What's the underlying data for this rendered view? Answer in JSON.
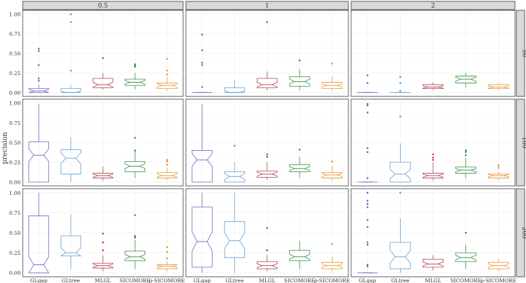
{
  "chart_data": {
    "type": "boxplot",
    "ylabel": "precision",
    "col_facets": [
      "0.5",
      "1",
      "2"
    ],
    "row_facets": [
      "50",
      "100",
      "200"
    ],
    "categories": [
      "GLgap",
      "GLtree",
      "MLGL",
      "SICOMORE",
      "ρ-SICOMORE"
    ],
    "colors": [
      "#6e5fc4",
      "#5b9bd5",
      "#b03a48",
      "#2e8b3a",
      "#e8912d"
    ],
    "ylim": [
      0,
      1
    ],
    "y_ticks": [
      0.0,
      0.25,
      0.5,
      0.75,
      1.0
    ],
    "y_tick_labels": [
      "0.00",
      "0.25",
      "0.50",
      "0.75",
      "1.00"
    ],
    "notched": true,
    "grid": true,
    "panels": [
      {
        "row": "50",
        "col": "0.5",
        "boxes": [
          {
            "q1": 0.0,
            "med": 0.02,
            "q3": 0.05,
            "lw": 0.0,
            "uw": 0.1,
            "notch": 0.02,
            "out": [
              0.15,
              0.18,
              0.35,
              0.53,
              0.56
            ]
          },
          {
            "q1": 0.0,
            "med": 0.0,
            "q3": 0.05,
            "lw": 0.0,
            "uw": 0.1,
            "notch": 0.02,
            "out": [
              0.28,
              0.9,
              1.0
            ]
          },
          {
            "q1": 0.06,
            "med": 0.1,
            "q3": 0.18,
            "lw": 0.04,
            "uw": 0.25,
            "notch": 0.03,
            "out": [
              0.44
            ]
          },
          {
            "q1": 0.09,
            "med": 0.13,
            "q3": 0.17,
            "lw": 0.04,
            "uw": 0.25,
            "notch": 0.025,
            "out": [
              0.33,
              0.35,
              0.36
            ]
          },
          {
            "q1": 0.05,
            "med": 0.09,
            "q3": 0.12,
            "lw": 0.02,
            "uw": 0.2,
            "notch": 0.02,
            "out": [
              0.23,
              0.28,
              0.43
            ]
          }
        ]
      },
      {
        "row": "50",
        "col": "1",
        "boxes": [
          {
            "q1": 0.0,
            "med": 0.0,
            "q3": 0.0,
            "lw": 0.0,
            "uw": 0.0,
            "notch": 0.0,
            "out": [
              0.07,
              0.35,
              0.38,
              0.54,
              0.74
            ]
          },
          {
            "q1": 0.0,
            "med": 0.0,
            "q3": 0.06,
            "lw": 0.0,
            "uw": 0.16,
            "notch": 0.02,
            "out": []
          },
          {
            "q1": 0.06,
            "med": 0.1,
            "q3": 0.18,
            "lw": 0.03,
            "uw": 0.27,
            "notch": 0.03,
            "out": [
              0.9
            ]
          },
          {
            "q1": 0.08,
            "med": 0.14,
            "q3": 0.2,
            "lw": 0.03,
            "uw": 0.3,
            "notch": 0.03,
            "out": [
              0.41
            ]
          },
          {
            "q1": 0.05,
            "med": 0.09,
            "q3": 0.13,
            "lw": 0.02,
            "uw": 0.2,
            "notch": 0.02,
            "out": [
              0.37
            ]
          }
        ]
      },
      {
        "row": "50",
        "col": "2",
        "boxes": [
          {
            "q1": 0.0,
            "med": 0.0,
            "q3": 0.0,
            "lw": 0.0,
            "uw": 0.0,
            "notch": 0.0,
            "out": [
              0.12,
              0.22
            ]
          },
          {
            "q1": 0.0,
            "med": 0.0,
            "q3": 0.0,
            "lw": 0.0,
            "uw": 0.0,
            "notch": 0.0,
            "out": [
              0.02,
              0.12,
              0.2
            ]
          },
          {
            "q1": 0.05,
            "med": 0.07,
            "q3": 0.1,
            "lw": 0.03,
            "uw": 0.13,
            "notch": 0.015,
            "out": []
          },
          {
            "q1": 0.12,
            "med": 0.17,
            "q3": 0.21,
            "lw": 0.07,
            "uw": 0.25,
            "notch": 0.025,
            "out": []
          },
          {
            "q1": 0.05,
            "med": 0.07,
            "q3": 0.1,
            "lw": 0.03,
            "uw": 0.12,
            "notch": 0.015,
            "out": []
          }
        ]
      },
      {
        "row": "100",
        "col": "0.5",
        "boxes": [
          {
            "q1": 0.0,
            "med": 0.34,
            "q3": 0.51,
            "lw": 0.0,
            "uw": 0.99,
            "notch": 0.08,
            "out": []
          },
          {
            "q1": 0.1,
            "med": 0.3,
            "q3": 0.41,
            "lw": 0.0,
            "uw": 0.57,
            "notch": 0.07,
            "out": []
          },
          {
            "q1": 0.05,
            "med": 0.08,
            "q3": 0.11,
            "lw": 0.02,
            "uw": 0.2,
            "notch": 0.02,
            "out": []
          },
          {
            "q1": 0.13,
            "med": 0.2,
            "q3": 0.26,
            "lw": 0.05,
            "uw": 0.39,
            "notch": 0.03,
            "out": [
              0.4,
              0.56
            ]
          },
          {
            "q1": 0.05,
            "med": 0.08,
            "q3": 0.12,
            "lw": 0.02,
            "uw": 0.18,
            "notch": 0.02,
            "out": [
              0.22,
              0.26,
              0.28
            ]
          }
        ]
      },
      {
        "row": "100",
        "col": "1",
        "boxes": [
          {
            "q1": 0.0,
            "med": 0.28,
            "q3": 0.4,
            "lw": 0.0,
            "uw": 0.99,
            "notch": 0.08,
            "out": []
          },
          {
            "q1": 0.0,
            "med": 0.07,
            "q3": 0.13,
            "lw": 0.0,
            "uw": 0.25,
            "notch": 0.04,
            "out": [
              0.46
            ]
          },
          {
            "q1": 0.06,
            "med": 0.1,
            "q3": 0.14,
            "lw": 0.03,
            "uw": 0.25,
            "notch": 0.025,
            "out": [
              0.32,
              0.35
            ]
          },
          {
            "q1": 0.13,
            "med": 0.17,
            "q3": 0.22,
            "lw": 0.05,
            "uw": 0.32,
            "notch": 0.025,
            "out": [
              0.41
            ]
          },
          {
            "q1": 0.05,
            "med": 0.09,
            "q3": 0.12,
            "lw": 0.02,
            "uw": 0.2,
            "notch": 0.02,
            "out": [
              0.26
            ]
          }
        ]
      },
      {
        "row": "100",
        "col": "2",
        "boxes": [
          {
            "q1": 0.0,
            "med": 0.0,
            "q3": 0.0,
            "lw": 0.0,
            "uw": 0.0,
            "notch": 0.0,
            "out": [
              0.05,
              0.38,
              0.43,
              0.88,
              0.97,
              0.99
            ]
          },
          {
            "q1": 0.0,
            "med": 0.1,
            "q3": 0.25,
            "lw": 0.0,
            "uw": 0.49,
            "notch": 0.06,
            "out": [
              0.83
            ]
          },
          {
            "q1": 0.05,
            "med": 0.08,
            "q3": 0.11,
            "lw": 0.02,
            "uw": 0.25,
            "notch": 0.02,
            "out": [
              0.28,
              0.31,
              0.35
            ]
          },
          {
            "q1": 0.11,
            "med": 0.15,
            "q3": 0.19,
            "lw": 0.05,
            "uw": 0.3,
            "notch": 0.02,
            "out": [
              0.34,
              0.38,
              0.4
            ]
          },
          {
            "q1": 0.05,
            "med": 0.08,
            "q3": 0.1,
            "lw": 0.02,
            "uw": 0.13,
            "notch": 0.015,
            "out": [
              0.18,
              0.21
            ]
          }
        ]
      },
      {
        "row": "200",
        "col": "0.5",
        "boxes": [
          {
            "q1": 0.0,
            "med": 0.1,
            "q3": 0.71,
            "lw": 0.0,
            "uw": 1.0,
            "notch": 0.1,
            "out": []
          },
          {
            "q1": 0.21,
            "med": 0.25,
            "q3": 0.46,
            "lw": 0.05,
            "uw": 0.73,
            "notch": 0.06,
            "out": []
          },
          {
            "q1": 0.06,
            "med": 0.09,
            "q3": 0.12,
            "lw": 0.02,
            "uw": 0.22,
            "notch": 0.02,
            "out": [
              0.28,
              0.38,
              0.49
            ]
          },
          {
            "q1": 0.15,
            "med": 0.2,
            "q3": 0.27,
            "lw": 0.05,
            "uw": 0.41,
            "notch": 0.03,
            "out": [
              0.44,
              0.46,
              0.72
            ]
          },
          {
            "q1": 0.05,
            "med": 0.08,
            "q3": 0.1,
            "lw": 0.02,
            "uw": 0.14,
            "notch": 0.015,
            "out": [
              0.18,
              0.26,
              0.32
            ]
          }
        ]
      },
      {
        "row": "200",
        "col": "1",
        "boxes": [
          {
            "q1": 0.07,
            "med": 0.39,
            "q3": 0.82,
            "lw": 0.0,
            "uw": 1.0,
            "notch": 0.12,
            "out": []
          },
          {
            "q1": 0.19,
            "med": 0.4,
            "q3": 0.64,
            "lw": 0.0,
            "uw": 1.0,
            "notch": 0.1,
            "out": []
          },
          {
            "q1": 0.05,
            "med": 0.09,
            "q3": 0.14,
            "lw": 0.02,
            "uw": 0.22,
            "notch": 0.025,
            "out": [
              0.28,
              0.56
            ]
          },
          {
            "q1": 0.15,
            "med": 0.2,
            "q3": 0.28,
            "lw": 0.05,
            "uw": 0.4,
            "notch": 0.03,
            "out": []
          },
          {
            "q1": 0.05,
            "med": 0.09,
            "q3": 0.13,
            "lw": 0.02,
            "uw": 0.2,
            "notch": 0.02,
            "out": [
              0.36
            ]
          }
        ]
      },
      {
        "row": "200",
        "col": "2",
        "boxes": [
          {
            "q1": 0.0,
            "med": 0.0,
            "q3": 0.0,
            "lw": 0.0,
            "uw": 0.0,
            "notch": 0.0,
            "out": [
              0.08,
              0.1,
              0.35,
              0.38,
              0.57,
              0.66,
              0.82,
              0.86,
              0.9,
              1.0
            ]
          },
          {
            "q1": 0.05,
            "med": 0.2,
            "q3": 0.38,
            "lw": 0.0,
            "uw": 0.68,
            "notch": 0.08,
            "out": [
              1.0
            ]
          },
          {
            "q1": 0.07,
            "med": 0.11,
            "q3": 0.17,
            "lw": 0.03,
            "uw": 0.22,
            "notch": 0.025,
            "out": []
          },
          {
            "q1": 0.14,
            "med": 0.19,
            "q3": 0.25,
            "lw": 0.05,
            "uw": 0.35,
            "notch": 0.03,
            "out": [
              0.5
            ]
          },
          {
            "q1": 0.05,
            "med": 0.09,
            "q3": 0.13,
            "lw": 0.02,
            "uw": 0.17,
            "notch": 0.02,
            "out": []
          }
        ]
      }
    ]
  }
}
